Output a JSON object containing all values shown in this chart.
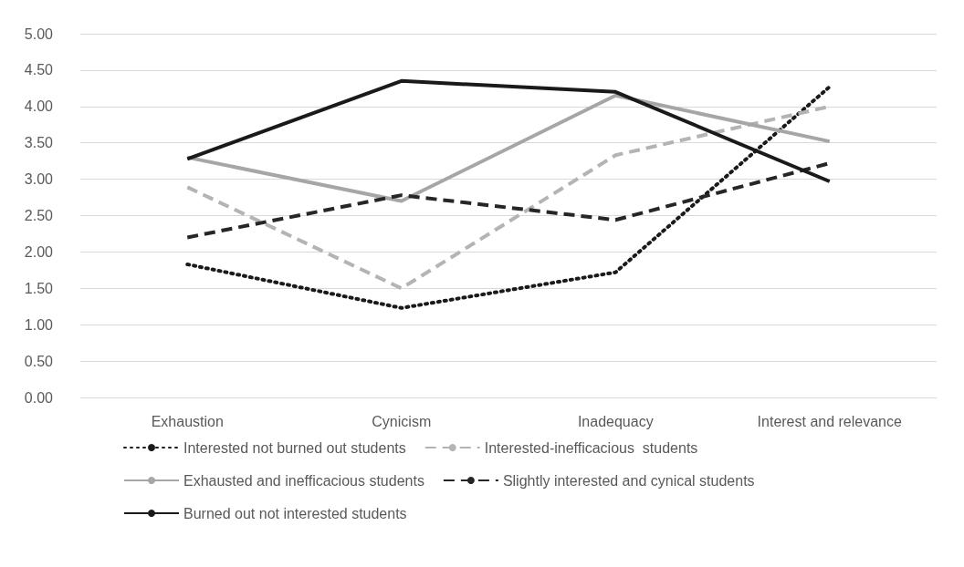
{
  "chart_data": {
    "type": "line",
    "categories": [
      "Exhaustion",
      "Cynicism",
      "Inadequacy",
      "Interest and relevance"
    ],
    "series": [
      {
        "name": "Interested not burned out students",
        "color": "#1a1a1a",
        "line_style": "dotted",
        "values": [
          1.83,
          1.23,
          1.72,
          4.27
        ]
      },
      {
        "name": "Interested-inefficacious  students",
        "color": "#b4b4b4",
        "line_style": "dashed",
        "values": [
          2.89,
          1.5,
          3.33,
          4.0
        ]
      },
      {
        "name": "Exhausted and inefficacious students",
        "color": "#a6a6a6",
        "line_style": "solid",
        "values": [
          3.3,
          2.7,
          4.15,
          3.52
        ]
      },
      {
        "name": "Slightly interested and cynical students",
        "color": "#262626",
        "line_style": "dashed",
        "values": [
          2.2,
          2.78,
          2.44,
          3.22
        ]
      },
      {
        "name": "Burned out not interested students",
        "color": "#1a1a1a",
        "line_style": "solid",
        "values": [
          3.28,
          4.35,
          4.2,
          2.97
        ]
      }
    ],
    "ylim": [
      0,
      5
    ],
    "yticks": [
      {
        "value": 0,
        "label": "0.00"
      },
      {
        "value": 0.5,
        "label": "0.50"
      },
      {
        "value": 1,
        "label": "1.00"
      },
      {
        "value": 1.5,
        "label": "1.50"
      },
      {
        "value": 2,
        "label": "2.00"
      },
      {
        "value": 2.5,
        "label": "2.50"
      },
      {
        "value": 3,
        "label": "3.00"
      },
      {
        "value": 3.5,
        "label": "3.50"
      },
      {
        "value": 4,
        "label": "4.00"
      },
      {
        "value": 4.5,
        "label": "4.50"
      },
      {
        "value": 5,
        "label": "5.00"
      }
    ],
    "grid": "y",
    "legend": "bottom",
    "marker": "none"
  }
}
